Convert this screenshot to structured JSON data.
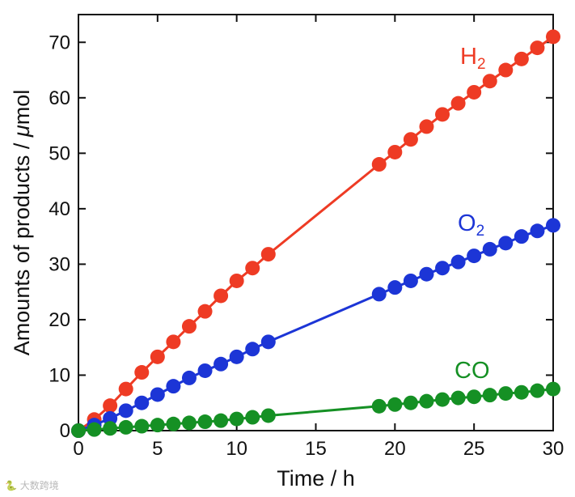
{
  "chart_data": {
    "type": "line",
    "title": "",
    "xlabel": "Time / h",
    "ylabel_prefix": "Amounts of products / ",
    "ylabel_mu": "μ",
    "ylabel_suffix": "mol",
    "xlim": [
      0,
      30
    ],
    "ylim": [
      0,
      75
    ],
    "xticks": [
      0,
      5,
      10,
      15,
      20,
      25,
      30
    ],
    "yticks": [
      0,
      10,
      20,
      30,
      40,
      50,
      60,
      70
    ],
    "grid": false,
    "legend": "inline labels",
    "series": [
      {
        "name": "H2",
        "label_main": "H",
        "label_sub": "2",
        "color": "#ee3b24",
        "x": [
          0,
          1,
          2,
          3,
          4,
          5,
          6,
          7,
          8,
          9,
          10,
          11,
          12,
          19,
          20,
          21,
          22,
          23,
          24,
          25,
          26,
          27,
          28,
          29,
          30
        ],
        "y": [
          0,
          2,
          4.5,
          7.5,
          10.5,
          13.3,
          16,
          18.8,
          21.5,
          24.3,
          27,
          29.3,
          31.8,
          48,
          50.2,
          52.5,
          54.8,
          57,
          59,
          61,
          63,
          65,
          67,
          69,
          71
        ]
      },
      {
        "name": "O2",
        "label_main": "O",
        "label_sub": "2",
        "color": "#1c35d6",
        "x": [
          0,
          1,
          2,
          3,
          4,
          5,
          6,
          7,
          8,
          9,
          10,
          11,
          12,
          19,
          20,
          21,
          22,
          23,
          24,
          25,
          26,
          27,
          28,
          29,
          30
        ],
        "y": [
          0,
          1,
          2.2,
          3.6,
          5,
          6.5,
          8,
          9.5,
          10.8,
          12,
          13.3,
          14.7,
          16,
          24.6,
          25.8,
          27,
          28.2,
          29.3,
          30.4,
          31.5,
          32.7,
          33.8,
          35,
          36,
          37
        ]
      },
      {
        "name": "CO",
        "label_main": "CO",
        "label_sub": "",
        "color": "#159024",
        "x": [
          0,
          1,
          2,
          3,
          4,
          5,
          6,
          7,
          8,
          9,
          10,
          11,
          12,
          19,
          20,
          21,
          22,
          23,
          24,
          25,
          26,
          27,
          28,
          29,
          30
        ],
        "y": [
          0,
          0.2,
          0.4,
          0.6,
          0.8,
          1.0,
          1.2,
          1.4,
          1.6,
          1.8,
          2.1,
          2.4,
          2.7,
          4.4,
          4.7,
          5.0,
          5.3,
          5.6,
          5.9,
          6.1,
          6.4,
          6.7,
          6.9,
          7.2,
          7.5
        ]
      }
    ]
  },
  "watermark": "🐍 大数跨境"
}
